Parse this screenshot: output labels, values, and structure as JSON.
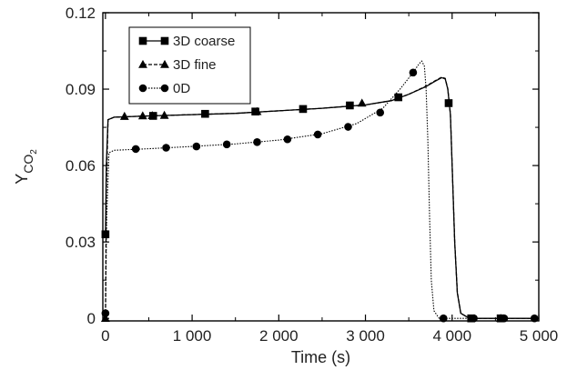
{
  "chart_data": {
    "type": "line",
    "xlabel": "Time (s)",
    "ylabel_main": "Y",
    "ylabel_sub": "CO",
    "ylabel_subsub": "2",
    "xlim": [
      -30,
      5000
    ],
    "ylim": [
      -0.001,
      0.12
    ],
    "x_ticks": [
      0,
      1000,
      2000,
      3000,
      4000,
      5000
    ],
    "x_tick_labels": [
      "0",
      "1 000",
      "2 000",
      "3 000",
      "4 000",
      "5 000"
    ],
    "y_ticks": [
      0,
      0.03,
      0.06,
      0.09,
      0.12
    ],
    "y_tick_labels": [
      "0",
      "0.03",
      "0.06",
      "0.09",
      "0.12"
    ],
    "grid": false,
    "legend_placement": "top-left",
    "series": [
      {
        "name": "3D coarse",
        "marker": "square",
        "line_style": "solid",
        "color": "#000000",
        "curve": [
          [
            0,
            0.033
          ],
          [
            10,
            0.06
          ],
          [
            30,
            0.078
          ],
          [
            100,
            0.079
          ],
          [
            500,
            0.0795
          ],
          [
            1000,
            0.08
          ],
          [
            1500,
            0.0805
          ],
          [
            2000,
            0.0815
          ],
          [
            2500,
            0.0825
          ],
          [
            3000,
            0.0838
          ],
          [
            3300,
            0.0855
          ],
          [
            3500,
            0.088
          ],
          [
            3700,
            0.091
          ],
          [
            3800,
            0.093
          ],
          [
            3880,
            0.0945
          ],
          [
            3920,
            0.094
          ],
          [
            3950,
            0.09
          ],
          [
            3980,
            0.08
          ],
          [
            4000,
            0.06
          ],
          [
            4030,
            0.03
          ],
          [
            4060,
            0.01
          ],
          [
            4100,
            0.002
          ],
          [
            4200,
            0
          ],
          [
            5000,
            0
          ]
        ],
        "markers": [
          [
            0,
            0.033
          ],
          [
            550,
            0.0795
          ],
          [
            1150,
            0.0803
          ],
          [
            1730,
            0.0812
          ],
          [
            2280,
            0.0822
          ],
          [
            2820,
            0.0836
          ],
          [
            3380,
            0.0868
          ],
          [
            3960,
            0.0845
          ],
          [
            4220,
            0
          ],
          [
            4560,
            0
          ]
        ]
      },
      {
        "name": "3D fine",
        "marker": "triangle",
        "line_style": "dashed",
        "color": "#000000",
        "curve": [
          [
            0,
            0
          ],
          [
            10,
            0.05
          ],
          [
            30,
            0.078
          ],
          [
            100,
            0.079
          ],
          [
            500,
            0.0795
          ],
          [
            1000,
            0.08
          ],
          [
            1500,
            0.0805
          ],
          [
            2000,
            0.0815
          ],
          [
            2500,
            0.0825
          ],
          [
            3000,
            0.0838
          ],
          [
            3300,
            0.0855
          ],
          [
            3500,
            0.088
          ],
          [
            3700,
            0.0912
          ],
          [
            3800,
            0.0932
          ],
          [
            3880,
            0.0947
          ],
          [
            3920,
            0.0942
          ],
          [
            3950,
            0.0902
          ],
          [
            3980,
            0.0802
          ],
          [
            4000,
            0.0602
          ],
          [
            4030,
            0.0302
          ],
          [
            4060,
            0.0102
          ],
          [
            4100,
            0.002
          ],
          [
            4200,
            0
          ],
          [
            5000,
            0
          ]
        ],
        "markers": [
          [
            0,
            0
          ],
          [
            220,
            0.0793
          ],
          [
            430,
            0.0795
          ],
          [
            540,
            0.0796
          ],
          [
            680,
            0.0797
          ],
          [
            1750,
            0.0812
          ],
          [
            2960,
            0.0845
          ],
          [
            4560,
            0
          ]
        ]
      },
      {
        "name": "0D",
        "marker": "circle",
        "line_style": "dotted",
        "color": "#000000",
        "curve": [
          [
            0,
            0.002
          ],
          [
            15,
            0.04
          ],
          [
            40,
            0.065
          ],
          [
            100,
            0.066
          ],
          [
            500,
            0.0666
          ],
          [
            1000,
            0.0675
          ],
          [
            1500,
            0.0685
          ],
          [
            2000,
            0.07
          ],
          [
            2500,
            0.0725
          ],
          [
            2900,
            0.0765
          ],
          [
            3200,
            0.0825
          ],
          [
            3400,
            0.09
          ],
          [
            3550,
            0.0965
          ],
          [
            3620,
            0.1
          ],
          [
            3650,
            0.101
          ],
          [
            3680,
            0.099
          ],
          [
            3700,
            0.09
          ],
          [
            3720,
            0.07
          ],
          [
            3740,
            0.04
          ],
          [
            3760,
            0.015
          ],
          [
            3790,
            0.003
          ],
          [
            3850,
            0
          ],
          [
            5000,
            0
          ]
        ],
        "markers": [
          [
            0,
            0.002
          ],
          [
            350,
            0.0665
          ],
          [
            700,
            0.067
          ],
          [
            1050,
            0.0675
          ],
          [
            1400,
            0.0683
          ],
          [
            1750,
            0.0692
          ],
          [
            2100,
            0.0703
          ],
          [
            2450,
            0.0722
          ],
          [
            2800,
            0.0752
          ],
          [
            3170,
            0.0808
          ],
          [
            3550,
            0.0965
          ],
          [
            3900,
            0
          ],
          [
            4250,
            0
          ],
          [
            4600,
            0
          ],
          [
            4950,
            0
          ]
        ]
      }
    ]
  }
}
